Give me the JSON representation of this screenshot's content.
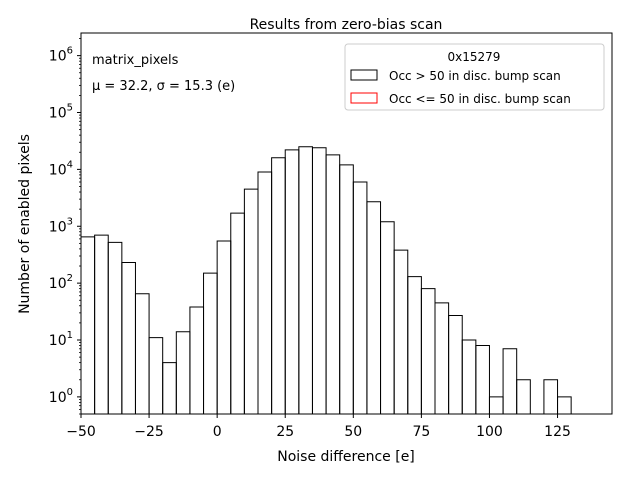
{
  "chart_data": {
    "type": "bar",
    "style": "step-histogram",
    "title": "Results from zero-bias scan",
    "xlabel": "Noise difference [e]",
    "ylabel": "Number of enabled pixels",
    "xlim": [
      -50,
      145
    ],
    "ylim": [
      0.5,
      2500000
    ],
    "yscale": "log",
    "grid": false,
    "legend_position": "top-right",
    "annotations": {
      "line1": "matrix_pixels",
      "line2": "μ = 32.2, σ = 15.3 (e)"
    },
    "x_ticks": [
      {
        "value": -50,
        "label": "−50"
      },
      {
        "value": -25,
        "label": "−25"
      },
      {
        "value": 0,
        "label": "0"
      },
      {
        "value": 25,
        "label": "25"
      },
      {
        "value": 50,
        "label": "50"
      },
      {
        "value": 75,
        "label": "75"
      },
      {
        "value": 100,
        "label": "100"
      },
      {
        "value": 125,
        "label": "125"
      }
    ],
    "y_ticks": [
      {
        "value": 1,
        "base": "10",
        "exp": "0"
      },
      {
        "value": 10,
        "base": "10",
        "exp": "1"
      },
      {
        "value": 100,
        "base": "10",
        "exp": "2"
      },
      {
        "value": 1000,
        "base": "10",
        "exp": "3"
      },
      {
        "value": 10000,
        "base": "10",
        "exp": "4"
      },
      {
        "value": 100000,
        "base": "10",
        "exp": "5"
      },
      {
        "value": 1000000,
        "base": "10",
        "exp": "6"
      }
    ],
    "legend": {
      "title": "0x15279",
      "entries": [
        {
          "label": "Occ > 50 in disc. bump scan",
          "color": "#000000"
        },
        {
          "label": "Occ <= 50 in disc. bump scan",
          "color": "#ff0000"
        }
      ]
    },
    "series": [
      {
        "name": "Occ > 50 in disc. bump scan",
        "color": "#000000",
        "bin_edges": [
          -50,
          -45,
          -40,
          -35,
          -30,
          -25,
          -20,
          -15,
          -10,
          -5,
          0,
          5,
          10,
          15,
          20,
          25,
          30,
          35,
          40,
          45,
          50,
          55,
          60,
          65,
          70,
          75,
          80,
          85,
          90,
          95,
          100,
          105,
          110,
          115,
          120,
          125,
          130
        ],
        "values": [
          650,
          700,
          520,
          230,
          65,
          11,
          4,
          14,
          38,
          150,
          550,
          1700,
          4500,
          9000,
          16000,
          22000,
          25000,
          24000,
          18000,
          12000,
          6000,
          2700,
          1200,
          380,
          130,
          80,
          45,
          27,
          10,
          8,
          1,
          7,
          2,
          0,
          2,
          1
        ]
      },
      {
        "name": "Occ <= 50 in disc. bump scan",
        "color": "#ff0000",
        "bin_edges": [],
        "values": []
      }
    ]
  }
}
